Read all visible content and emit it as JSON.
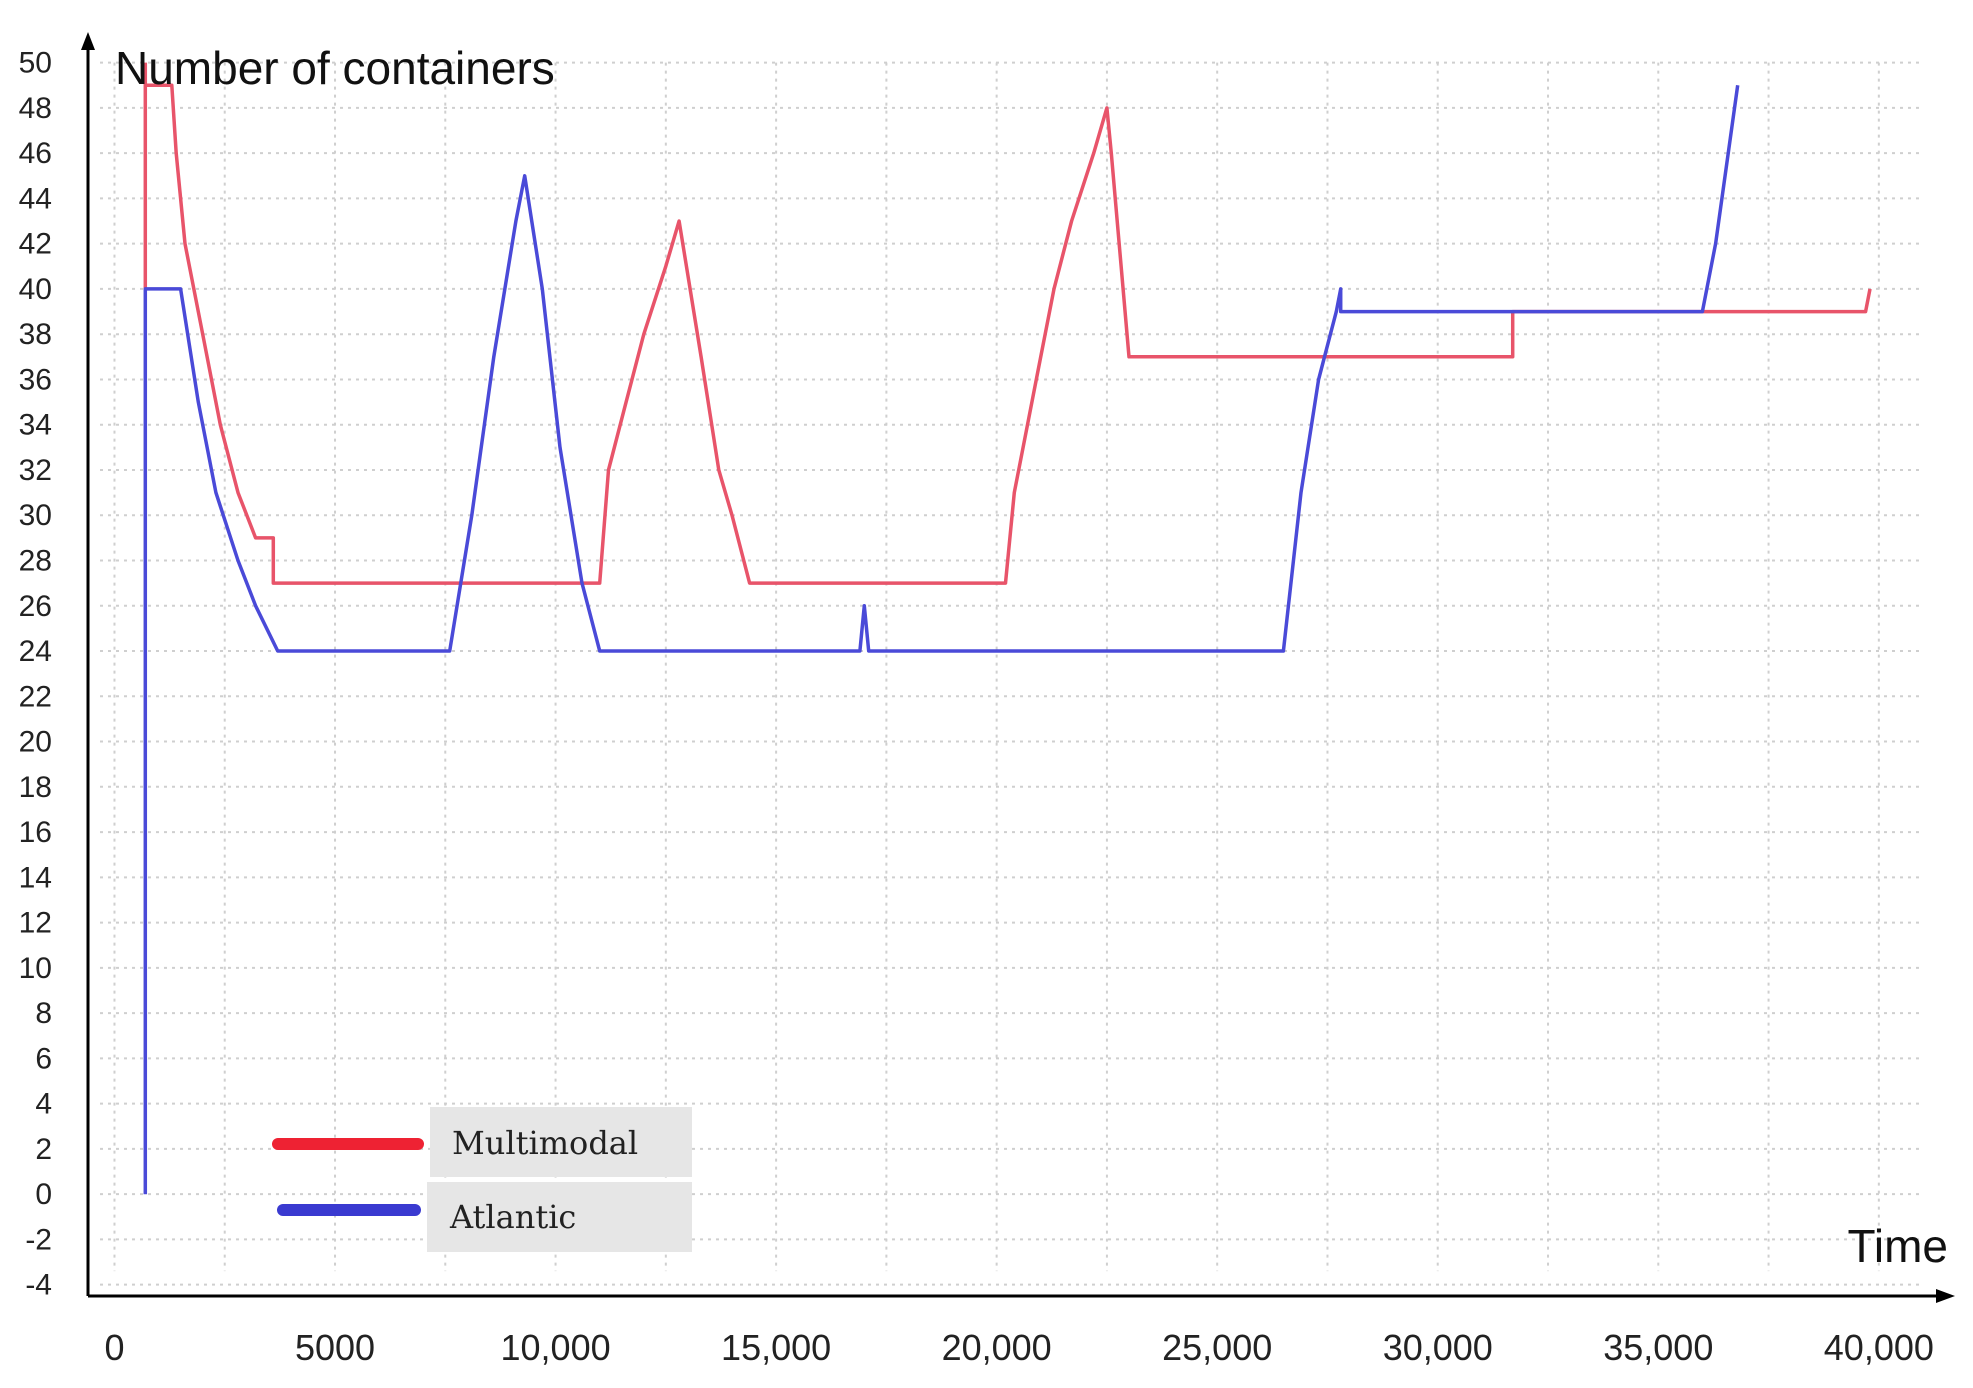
{
  "chart_data": {
    "type": "line",
    "ylabel": "Number of containers",
    "xlabel": "Time",
    "x_ticks": [
      {
        "value": 0,
        "label": "0"
      },
      {
        "value": 5000,
        "label": "5000"
      },
      {
        "value": 10000,
        "label": "10,000"
      },
      {
        "value": 15000,
        "label": "15,000"
      },
      {
        "value": 20000,
        "label": "20,000"
      },
      {
        "value": 25000,
        "label": "25,000"
      },
      {
        "value": 30000,
        "label": "30,000"
      },
      {
        "value": 35000,
        "label": "35,000"
      },
      {
        "value": 40000,
        "label": "40,000"
      }
    ],
    "y_ticks": [
      -4,
      -2,
      0,
      2,
      4,
      6,
      8,
      10,
      12,
      14,
      16,
      18,
      20,
      22,
      24,
      26,
      28,
      30,
      32,
      34,
      36,
      38,
      40,
      42,
      44,
      46,
      48,
      50
    ],
    "xlim": [
      -600,
      41500
    ],
    "ylim": [
      -4.5,
      51
    ],
    "grid": true,
    "legend_position": "bottom-left",
    "series": [
      {
        "name": "Multimodal",
        "color": "#e8546a",
        "points": [
          [
            700,
            50
          ],
          [
            700,
            40
          ],
          [
            700,
            49
          ],
          [
            1300,
            49
          ],
          [
            1400,
            46
          ],
          [
            1600,
            42
          ],
          [
            2000,
            38
          ],
          [
            2400,
            34
          ],
          [
            2800,
            31
          ],
          [
            3200,
            29
          ],
          [
            3600,
            29
          ],
          [
            3600,
            27
          ],
          [
            11000,
            27
          ],
          [
            11200,
            32
          ],
          [
            11600,
            35
          ],
          [
            12000,
            38
          ],
          [
            12500,
            41
          ],
          [
            12800,
            43
          ],
          [
            13300,
            37
          ],
          [
            13700,
            32
          ],
          [
            14000,
            30
          ],
          [
            14400,
            27
          ],
          [
            20200,
            27
          ],
          [
            20400,
            31
          ],
          [
            20900,
            36
          ],
          [
            21300,
            40
          ],
          [
            21700,
            43
          ],
          [
            22200,
            46
          ],
          [
            22500,
            48
          ],
          [
            22600,
            46
          ],
          [
            23000,
            37
          ],
          [
            31700,
            37
          ],
          [
            31700,
            39
          ],
          [
            39700,
            39
          ],
          [
            39800,
            40
          ]
        ]
      },
      {
        "name": "Atlantic",
        "color": "#4a4ad8",
        "points": [
          [
            700,
            0
          ],
          [
            700,
            40
          ],
          [
            1500,
            40
          ],
          [
            1900,
            35
          ],
          [
            2300,
            31
          ],
          [
            2800,
            28
          ],
          [
            3200,
            26
          ],
          [
            3700,
            24
          ],
          [
            7600,
            24
          ],
          [
            8100,
            30
          ],
          [
            8600,
            37
          ],
          [
            9100,
            43
          ],
          [
            9300,
            45
          ],
          [
            9700,
            40
          ],
          [
            10100,
            33
          ],
          [
            10600,
            27
          ],
          [
            11000,
            24
          ],
          [
            16900,
            24
          ],
          [
            17000,
            26
          ],
          [
            17100,
            24
          ],
          [
            26500,
            24
          ],
          [
            26900,
            31
          ],
          [
            27300,
            36
          ],
          [
            27700,
            39
          ],
          [
            27800,
            40
          ],
          [
            27800,
            39
          ],
          [
            36000,
            39
          ],
          [
            36300,
            42
          ],
          [
            36800,
            49
          ]
        ]
      }
    ]
  }
}
